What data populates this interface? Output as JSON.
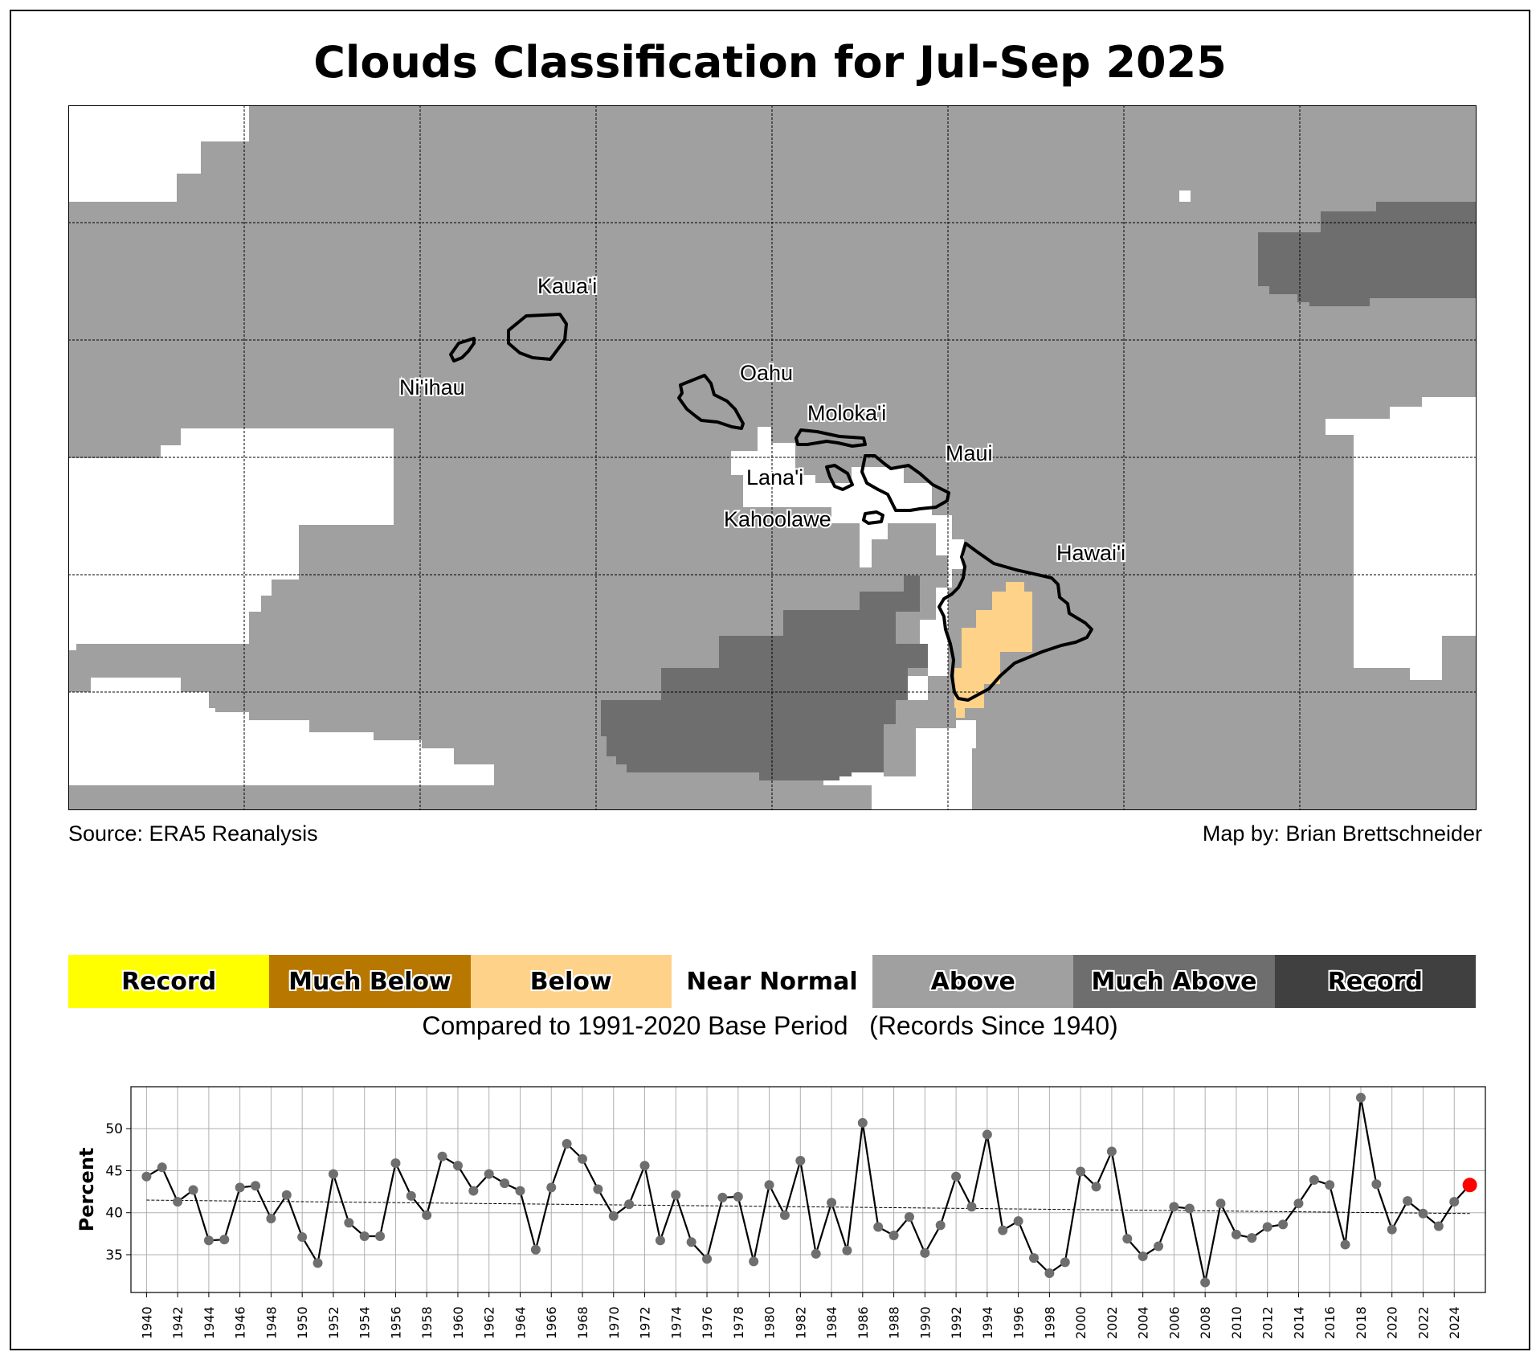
{
  "title": "Clouds Classification for Jul-Sep 2025",
  "map": {
    "source": "Source: ERA5 Reanalysis",
    "credit": "Map by: Brian Brettschneider",
    "islands": [
      "Kaua'i",
      "Ni'ihau",
      "Oahu",
      "Moloka'i",
      "Lana'i",
      "Maui",
      "Kahoolawe",
      "Hawai'i"
    ],
    "colors": {
      "near_normal": "#ffffff",
      "above": "#a0a0a0",
      "much_above": "#6e6e6e",
      "below": "#ffd28a"
    }
  },
  "legend": {
    "items": [
      {
        "label": "Record",
        "color": "#ffff00"
      },
      {
        "label": "Much Below",
        "color": "#b87800"
      },
      {
        "label": "Below",
        "color": "#ffd28a"
      },
      {
        "label": "Near Normal",
        "color": "#ffffff"
      },
      {
        "label": "Above",
        "color": "#a0a0a0"
      },
      {
        "label": "Much Above",
        "color": "#6e6e6e"
      },
      {
        "label": "Record",
        "color": "#404040"
      }
    ],
    "caption": "Compared to 1991-2020 Base Period   (Records Since 1940)"
  },
  "chart_data": {
    "type": "line",
    "ylabel": "Percent",
    "xlabel": "",
    "ylim": [
      30.5,
      55
    ],
    "yticks": [
      35,
      40,
      45,
      50
    ],
    "grid": true,
    "x": [
      1940,
      1941,
      1942,
      1943,
      1944,
      1945,
      1946,
      1947,
      1948,
      1949,
      1950,
      1951,
      1952,
      1953,
      1954,
      1955,
      1956,
      1957,
      1958,
      1959,
      1960,
      1961,
      1962,
      1963,
      1964,
      1965,
      1966,
      1967,
      1968,
      1969,
      1970,
      1971,
      1972,
      1973,
      1974,
      1975,
      1976,
      1977,
      1978,
      1979,
      1980,
      1981,
      1982,
      1983,
      1984,
      1985,
      1986,
      1987,
      1988,
      1989,
      1990,
      1991,
      1992,
      1993,
      1994,
      1995,
      1996,
      1997,
      1998,
      1999,
      2000,
      2001,
      2002,
      2003,
      2004,
      2005,
      2006,
      2007,
      2008,
      2009,
      2010,
      2011,
      2012,
      2013,
      2014,
      2015,
      2016,
      2017,
      2018,
      2019,
      2020,
      2021,
      2022,
      2023,
      2024,
      2025
    ],
    "values": [
      44.3,
      45.4,
      41.3,
      42.7,
      36.7,
      36.8,
      43.0,
      43.2,
      39.3,
      42.1,
      37.1,
      34.0,
      44.6,
      38.8,
      37.2,
      37.2,
      45.9,
      42.0,
      39.7,
      46.7,
      45.6,
      42.6,
      44.6,
      43.5,
      42.6,
      35.6,
      43.0,
      48.2,
      46.4,
      42.8,
      39.6,
      41.0,
      45.6,
      36.7,
      42.1,
      36.5,
      34.5,
      41.8,
      41.9,
      34.2,
      43.3,
      39.7,
      46.2,
      35.1,
      41.2,
      35.5,
      50.7,
      38.3,
      37.3,
      39.5,
      35.2,
      38.5,
      44.3,
      40.7,
      49.3,
      37.9,
      39.0,
      34.6,
      32.8,
      34.1,
      44.9,
      43.1,
      47.3,
      36.9,
      34.8,
      36.0,
      40.7,
      40.5,
      31.7,
      41.1,
      37.4,
      37.0,
      38.3,
      38.6,
      41.1,
      43.9,
      43.3,
      36.2,
      53.7,
      43.4,
      38.0,
      41.4,
      39.9,
      38.4,
      41.3,
      43.3
    ],
    "trend": {
      "start": 41.5,
      "end": 39.9
    },
    "highlight": {
      "year": 2025,
      "value": 43.3,
      "color": "#ff0000"
    },
    "xticks_every": 2
  }
}
